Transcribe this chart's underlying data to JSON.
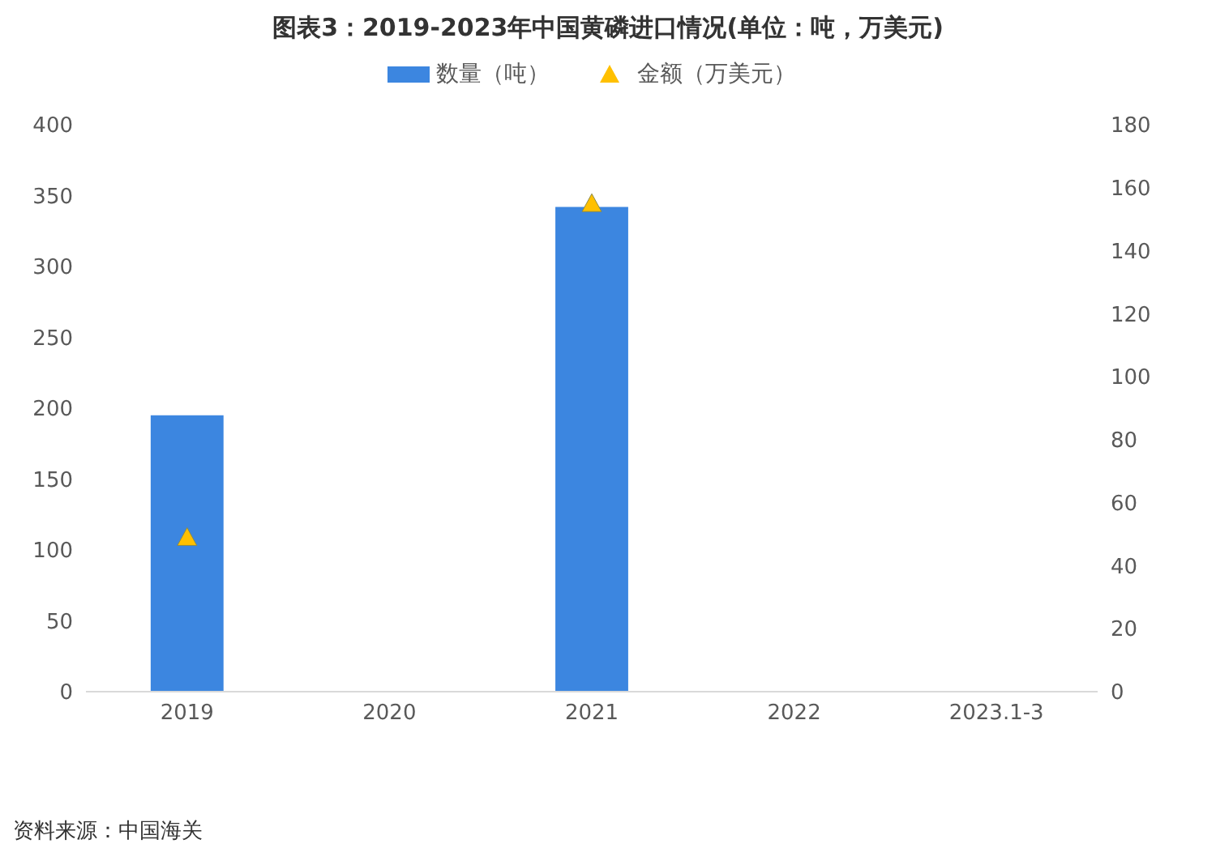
{
  "chart_data": {
    "type": "bar",
    "title": "图表3：2019-2023年中国黄磷进口情况(单位：吨，万美元)",
    "categories": [
      "2019",
      "2020",
      "2021",
      "2022",
      "2023.1-3"
    ],
    "series": [
      {
        "name": "数量（吨）",
        "color": "#3c86e0",
        "values": [
          195,
          null,
          342,
          null,
          null
        ]
      },
      {
        "name": "金额（万美元）",
        "type": "scatter",
        "axis": "y2",
        "color": "#ffc000",
        "marker": "triangle",
        "values": [
          49,
          null,
          155,
          null,
          null
        ]
      }
    ],
    "ylim": [
      0,
      400
    ],
    "yticks": [
      0,
      50,
      100,
      150,
      200,
      250,
      300,
      350,
      400
    ],
    "y2lim": [
      0,
      180
    ],
    "y2ticks": [
      0,
      20,
      40,
      60,
      80,
      100,
      120,
      140,
      160,
      180
    ],
    "grid": false,
    "legend": "top",
    "annotations": [
      "资料来源：中国海关"
    ]
  }
}
